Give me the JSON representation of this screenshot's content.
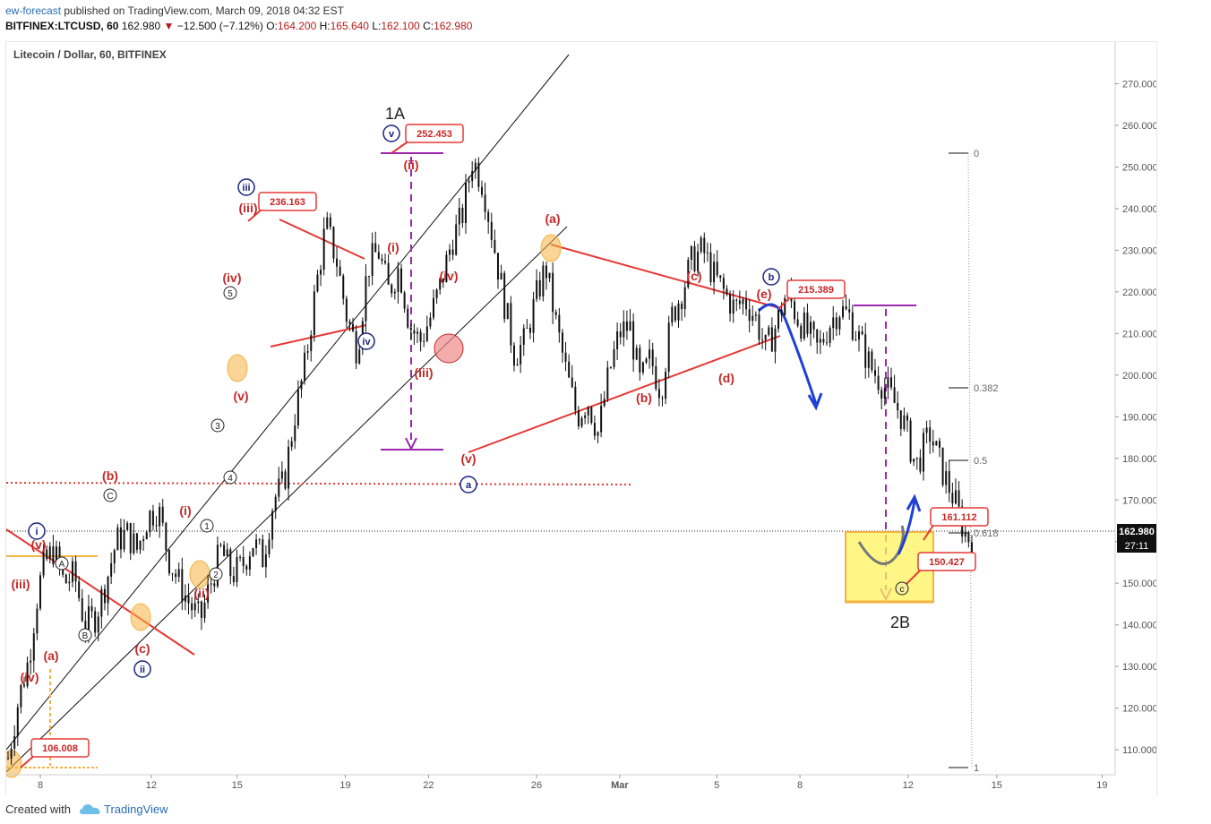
{
  "header": {
    "author": "ew-forecast",
    "published_text": "published on TradingView.com, March 09, 2018 04:32 EST",
    "symbol": "BITFINEX:LTCUSD, 60",
    "last": "162.980",
    "change": "−12.500 (−7.12%)",
    "ohlc": {
      "o_label": "O:",
      "o": "164.200",
      "h_label": "H:",
      "h": "165.640",
      "l_label": "L:",
      "l": "162.100",
      "c_label": "C:",
      "c": "162.980"
    }
  },
  "footer": {
    "created_with": "Created with",
    "brand": "TradingView"
  },
  "colors": {
    "candle": "#111111",
    "trend_red": "#e53935",
    "wave_red": "#c62828",
    "wave_blue": "#1a237e",
    "projection_purple": "#9c27b0",
    "highlight_orange": "#f5b342",
    "target_zone": "#fff35c",
    "arrow_blue": "#1f3fd6",
    "axis_text": "#555555"
  },
  "chart_data": {
    "type": "line",
    "title": "Litecoin / Dollar, 60, BITFINEX",
    "y_ticks": [
      "110.000",
      "120.000",
      "130.000",
      "140.000",
      "150.000",
      "160.000",
      "170.000",
      "180.000",
      "190.000",
      "200.000",
      "210.000",
      "220.000",
      "230.000",
      "240.000",
      "250.000",
      "260.000",
      "270.000"
    ],
    "ylim": [
      104,
      280
    ],
    "x_ticks": [
      "8",
      "12",
      "15",
      "19",
      "22",
      "26",
      "Mar",
      "5",
      "8",
      "12",
      "15",
      "19"
    ],
    "current_price": "162.980",
    "countdown": "27:11",
    "series": [
      {
        "x": [
          0,
          3,
          6,
          8,
          10,
          13,
          16,
          19,
          22,
          25,
          28,
          31,
          34,
          37,
          40,
          43,
          46,
          49,
          52,
          55,
          58,
          61,
          64,
          67,
          70,
          73,
          76,
          79,
          82,
          85,
          88,
          91,
          94,
          97,
          100,
          103,
          106,
          109,
          112,
          115,
          118,
          121,
          124,
          127,
          130,
          133,
          136,
          139,
          142,
          145,
          148,
          151,
          154,
          157,
          160,
          163,
          166,
          169,
          172,
          175,
          178,
          181,
          184,
          187,
          190,
          193,
          196,
          199,
          202,
          205,
          208,
          211,
          214,
          217,
          220,
          223,
          226,
          229,
          232,
          235,
          238,
          241,
          244,
          247
        ],
        "values": [
          108,
          122,
          132,
          145,
          154,
          158,
          150,
          152,
          140,
          142,
          150,
          160,
          162,
          158,
          166,
          168,
          156,
          150,
          145,
          141,
          150,
          158,
          152,
          154,
          160,
          156,
          170,
          174,
          190,
          202,
          220,
          236,
          228,
          214,
          206,
          226,
          230,
          220,
          226,
          212,
          208,
          214,
          222,
          232,
          238,
          252,
          246,
          232,
          218,
          205,
          208,
          218,
          226,
          212,
          200,
          190,
          194,
          186,
          200,
          210,
          212,
          198,
          204,
          196,
          214,
          220,
          228,
          230,
          224,
          220,
          216,
          218,
          214,
          206,
          212,
          220,
          214,
          210,
          206,
          212,
          216,
          214,
          208,
          202
        ],
        "name": ""
      }
    ],
    "fib_levels": [
      {
        "label": "0",
        "value": 252.6
      },
      {
        "label": "0.382",
        "value": 196.9
      },
      {
        "label": "0.5",
        "value": 179.7
      },
      {
        "label": "0.618",
        "value": 162.5
      },
      {
        "label": "1",
        "value": 106.9
      }
    ],
    "price_labels": [
      "252.453",
      "236.163",
      "215.389",
      "161.112",
      "150.427",
      "106.008"
    ],
    "wave_labels": {
      "main": [
        "1A",
        "2B"
      ],
      "circled_blue": [
        "i",
        "ii",
        "iii",
        "iv",
        "v",
        "a",
        "b"
      ],
      "red_paren": [
        "(v)",
        "(iii)",
        "(iv)",
        "(a)",
        "(b)",
        "(c)",
        "(i)",
        "(ii)",
        "(iii)",
        "(iv)",
        "(v)",
        "(ii)",
        "(i)",
        "(iii)",
        "(iv)",
        "(v)",
        "(a)",
        "(b)",
        "(c)",
        "(d)",
        "(e)"
      ],
      "circled_small": [
        "1",
        "2",
        "3",
        "4",
        "5",
        "A",
        "B",
        "C",
        "c"
      ]
    }
  }
}
